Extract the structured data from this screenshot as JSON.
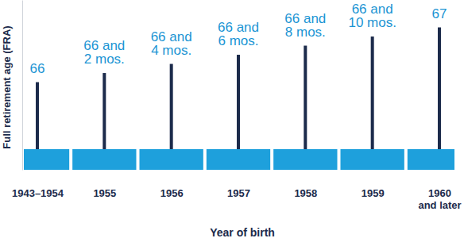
{
  "chart_data": {
    "type": "bar",
    "x_label": "Year of birth",
    "y_label": "Full retirement age (FRA)",
    "categories": [
      "1943–1954",
      "1955",
      "1956",
      "1957",
      "1958",
      "1959",
      "1960\nand later"
    ],
    "values": [
      66,
      66.16666666666667,
      66.33333333333333,
      66.5,
      66.66666666666667,
      66.83333333333333,
      67
    ],
    "value_labels": [
      "66",
      "66 and\n2 mos.",
      "66 and\n4 mos.",
      "66 and\n6 mos.",
      "66 and\n8 mos.",
      "66 and\n10 mos.",
      "67"
    ],
    "data_labels": true,
    "tick_labels": "x",
    "color": "#1c2b4b",
    "ylim": [
      64.4,
      67.5
    ],
    "yticks": []
  }
}
